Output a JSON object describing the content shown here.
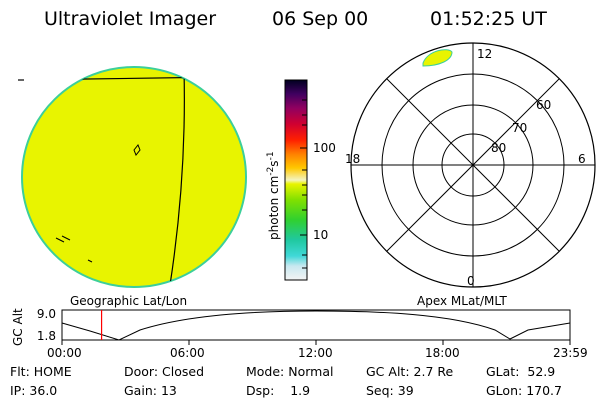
{
  "header": {
    "instrument": "Ultraviolet Imager",
    "date": "06 Sep 00",
    "time": "01:52:25 UT"
  },
  "colorbar": {
    "unit_label": "photon cm",
    "unit_exp1": "-2",
    "unit_mid": "s",
    "unit_exp2": "-1",
    "tick_100": "100",
    "tick_10": "10"
  },
  "polar_plot": {
    "mlt_top": "12",
    "mlt_bottom": "0",
    "mlt_left": "18",
    "mlt_right": "6",
    "lat_60": "60",
    "lat_70": "70",
    "lat_80": "80"
  },
  "projection_labels": {
    "left": "Geographic Lat/Lon",
    "right": "Apex MLat/MLT"
  },
  "orbit_plot": {
    "ylabel": "GC Alt",
    "y_max": "9.0",
    "y_min": "1.8",
    "x_ticks": [
      "00:00",
      "06:00",
      "12:00",
      "18:00",
      "23:59"
    ],
    "current_time_hours": 1.87
  },
  "status": {
    "flt_label": "Flt:",
    "flt_value": "HOME",
    "ip_label": "IP:",
    "ip_value": "36.0",
    "door_label": "Door:",
    "door_value": "Closed",
    "gain_label": "Gain:",
    "gain_value": "13",
    "mode_label": "Mode:",
    "mode_value": "Normal",
    "dsp_label": "Dsp:",
    "dsp_value": "1.9",
    "gcalt_label": "GC Alt:",
    "gcalt_value": "2.7 Re",
    "seq_label": "Seq:",
    "seq_value": "39",
    "glat_label": "GLat:",
    "glat_value": "52.9",
    "glon_label": "GLon:",
    "glon_value": "170.7"
  },
  "colors": {
    "image_fill": "#e8f400",
    "image_rim": "#3ccf9a",
    "time_marker": "#ff0000"
  }
}
